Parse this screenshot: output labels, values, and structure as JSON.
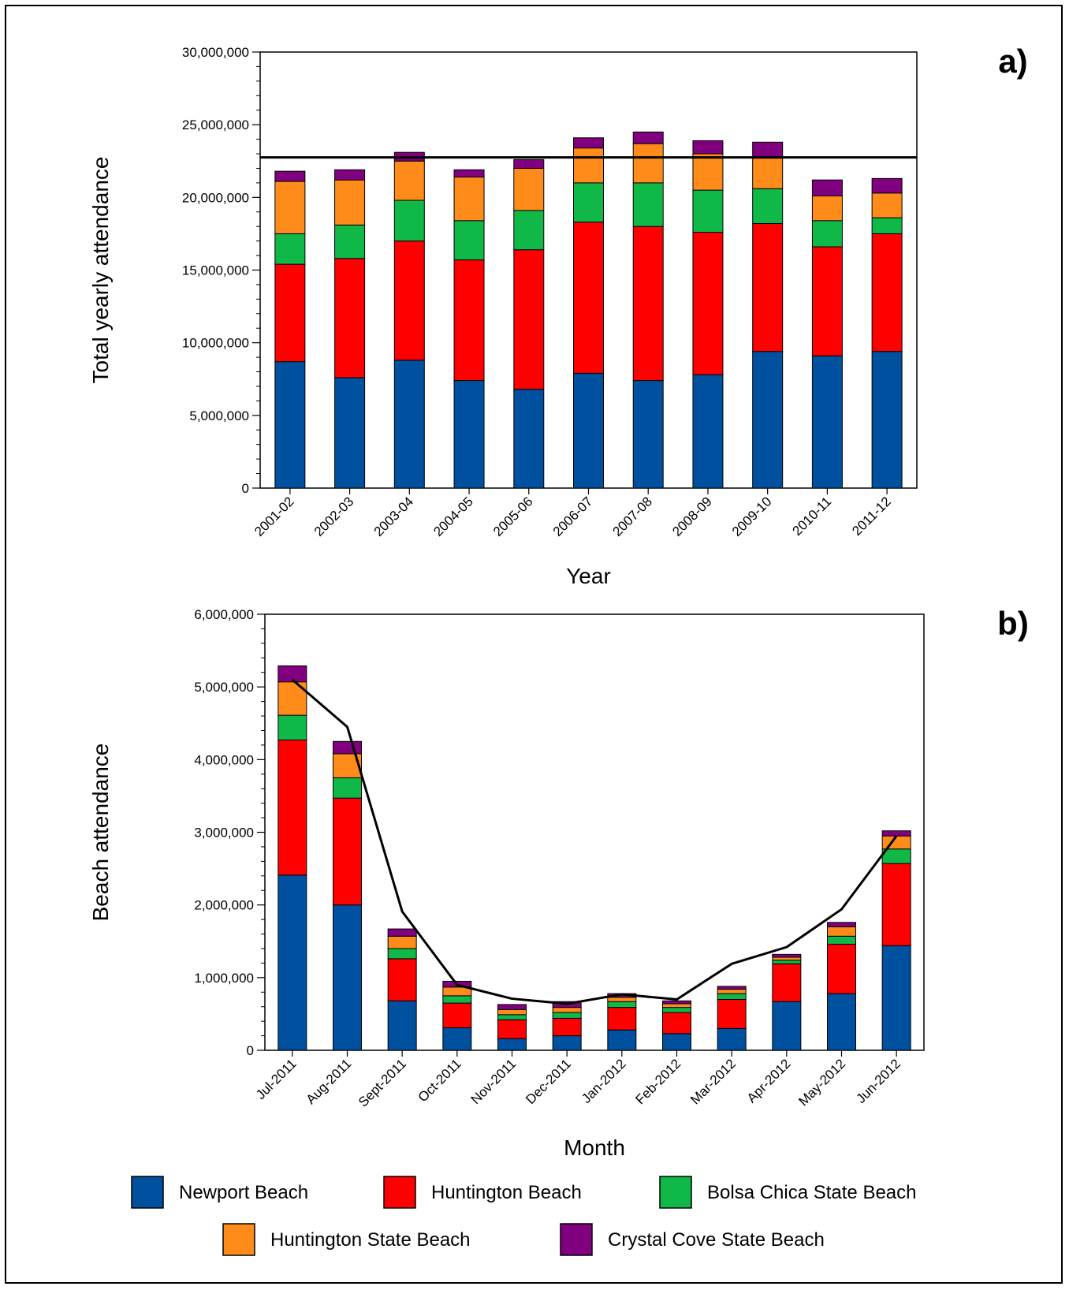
{
  "legend": [
    {
      "name": "Newport Beach",
      "color": "#0050a0"
    },
    {
      "name": "Huntington Beach",
      "color": "#ff0000"
    },
    {
      "name": "Bolsa Chica State Beach",
      "color": "#10b848"
    },
    {
      "name": "Huntington State Beach",
      "color": "#ff8c1a"
    },
    {
      "name": "Crystal Cove State Beach",
      "color": "#800080"
    }
  ],
  "chart_data": [
    {
      "type": "bar",
      "stacked": true,
      "panel_label": "a)",
      "xlabel": "Year",
      "ylabel": "Total yearly attendance",
      "ylim": [
        0,
        30000000
      ],
      "yticks": [
        "0",
        "5,000,000",
        "10,000,000",
        "15,000,000",
        "20,000,000",
        "25,000,000",
        "30,000,000"
      ],
      "categories": [
        "2001-02",
        "2002-03",
        "2003-04",
        "2004-05",
        "2005-06",
        "2006-07",
        "2007-08",
        "2008-09",
        "2009-10",
        "2010-11",
        "2011-12"
      ],
      "series": [
        {
          "name": "Newport Beach",
          "values": [
            8700000,
            7600000,
            8800000,
            7400000,
            6800000,
            7900000,
            7400000,
            7800000,
            9400000,
            9100000,
            9400000
          ]
        },
        {
          "name": "Huntington Beach",
          "values": [
            6700000,
            8200000,
            8200000,
            8300000,
            9600000,
            10400000,
            10600000,
            9800000,
            8800000,
            7500000,
            8100000
          ]
        },
        {
          "name": "Bolsa Chica State Beach",
          "values": [
            2100000,
            2300000,
            2800000,
            2700000,
            2700000,
            2700000,
            3000000,
            2900000,
            2400000,
            1800000,
            1100000
          ]
        },
        {
          "name": "Huntington State Beach",
          "values": [
            3600000,
            3100000,
            2700000,
            3000000,
            2900000,
            2400000,
            2700000,
            2500000,
            2100000,
            1700000,
            1700000
          ]
        },
        {
          "name": "Crystal Cove State Beach",
          "values": [
            700000,
            700000,
            600000,
            500000,
            600000,
            700000,
            800000,
            900000,
            1100000,
            1100000,
            1000000
          ]
        }
      ],
      "reference_line": 22750000
    },
    {
      "type": "bar",
      "stacked": true,
      "panel_label": "b)",
      "xlabel": "Month",
      "ylabel": "Beach attendance",
      "ylim": [
        0,
        6000000
      ],
      "yticks": [
        "0",
        "1,000,000",
        "2,000,000",
        "3,000,000",
        "4,000,000",
        "5,000,000",
        "6,000,000"
      ],
      "categories": [
        "Jul-2011",
        "Aug-2011",
        "Sept-2011",
        "Oct-2011",
        "Nov-2011",
        "Dec-2011",
        "Jan-2012",
        "Feb-2012",
        "Mar-2012",
        "Apr-2012",
        "May-2012",
        "Jun-2012"
      ],
      "series": [
        {
          "name": "Newport Beach",
          "values": [
            2410000,
            2000000,
            680000,
            310000,
            160000,
            200000,
            280000,
            230000,
            300000,
            670000,
            780000,
            1440000
          ]
        },
        {
          "name": "Huntington Beach",
          "values": [
            1860000,
            1470000,
            580000,
            340000,
            260000,
            240000,
            310000,
            290000,
            400000,
            520000,
            680000,
            1130000
          ]
        },
        {
          "name": "Bolsa Chica State Beach",
          "values": [
            340000,
            280000,
            140000,
            100000,
            70000,
            80000,
            80000,
            70000,
            80000,
            50000,
            110000,
            200000
          ]
        },
        {
          "name": "Huntington State Beach",
          "values": [
            460000,
            330000,
            170000,
            120000,
            70000,
            70000,
            60000,
            50000,
            60000,
            40000,
            130000,
            180000
          ]
        },
        {
          "name": "Crystal Cove State Beach",
          "values": [
            220000,
            170000,
            100000,
            80000,
            70000,
            80000,
            50000,
            40000,
            40000,
            40000,
            60000,
            70000
          ]
        }
      ],
      "line": [
        5100000,
        4450000,
        1910000,
        900000,
        710000,
        640000,
        770000,
        700000,
        1190000,
        1420000,
        1940000,
        2950000
      ]
    }
  ]
}
